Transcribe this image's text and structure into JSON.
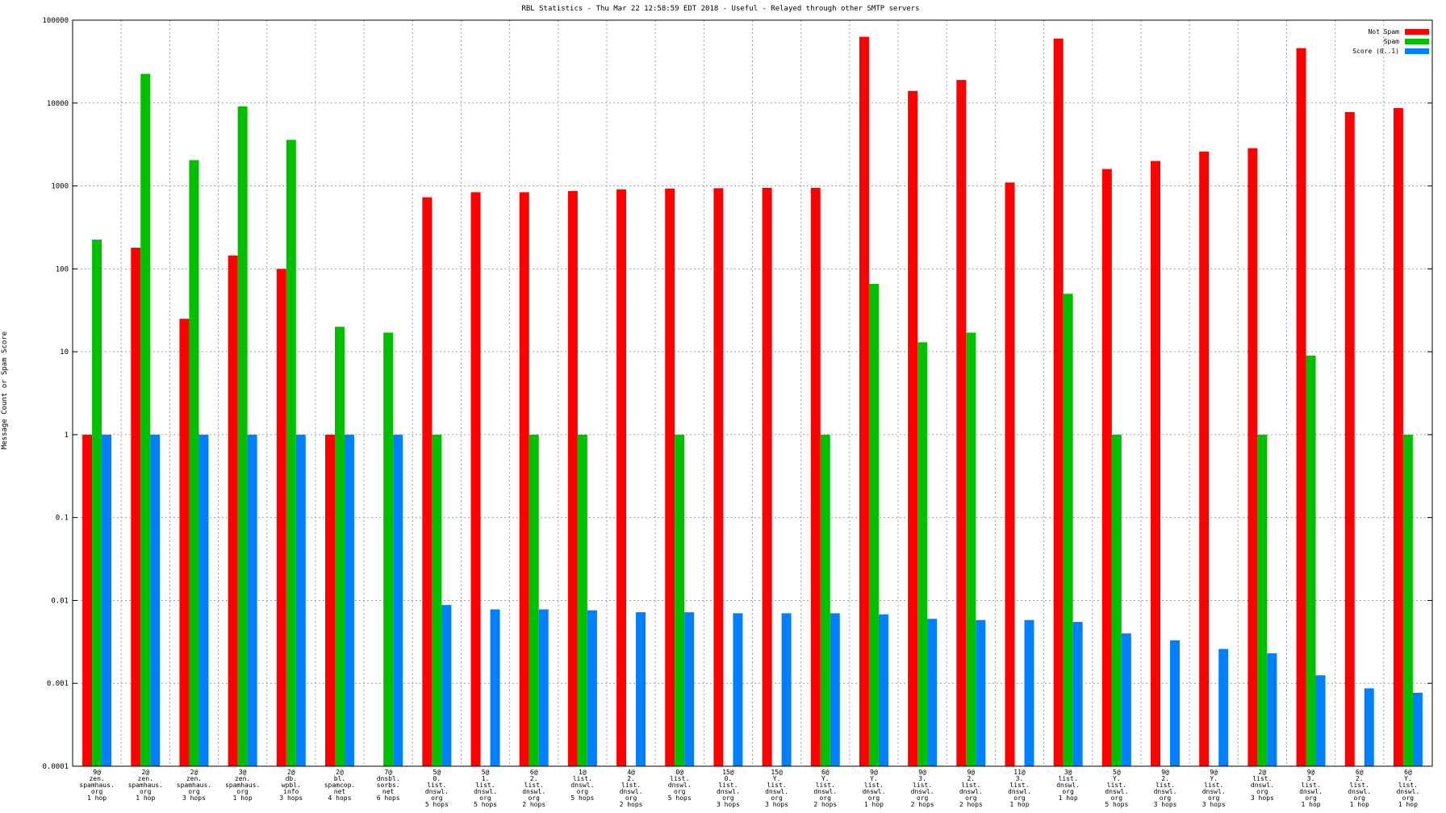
{
  "chart_data": {
    "type": "bar",
    "title": "RBL Statistics - Thu Mar 22 12:58:59 EDT 2018 - Useful - Relayed through other SMTP servers",
    "ylabel": "Message Count or Spam Score",
    "xlabel": "",
    "yscale": "log",
    "ylim": [
      0.0001,
      100000
    ],
    "yticks": [
      "100000",
      "10000",
      "1000",
      "100",
      "10",
      "1",
      "0.1",
      "0.01",
      "0.001",
      "0.0001"
    ],
    "grid": true,
    "legend_position": "top-right",
    "colors": {
      "Not Spam": "#ff0000",
      "Spam": "#00c000",
      "Score (0..1)": "#0080ff"
    },
    "categories": [
      [
        "9@",
        "zen.",
        "spamhaus.",
        "org",
        "1 hop"
      ],
      [
        "2@",
        "zen.",
        "spamhaus.",
        "org",
        "1 hop"
      ],
      [
        "2@",
        "zen.",
        "spamhaus.",
        "org",
        "3 hops"
      ],
      [
        "3@",
        "zen.",
        "spamhaus.",
        "org",
        "1 hop"
      ],
      [
        "2@",
        "db.",
        "wpbl.",
        "info",
        "3 hops"
      ],
      [
        "2@",
        "bl.",
        "spamcop.",
        "net",
        "4 hops"
      ],
      [
        "7@",
        "dnsbl.",
        "sorbs.",
        "net",
        "6 hops"
      ],
      [
        "5@",
        "0.",
        "list.",
        "dnswl.",
        "org",
        "5 hops"
      ],
      [
        "5@",
        "1.",
        "list.",
        "dnswl.",
        "org",
        "5 hops"
      ],
      [
        "6@",
        "2.",
        "list.",
        "dnswl.",
        "org",
        "2 hops"
      ],
      [
        "1@",
        "list.",
        "dnswl.",
        "org",
        "5 hops"
      ],
      [
        "4@",
        "2.",
        "list.",
        "dnswl.",
        "org",
        "2 hops"
      ],
      [
        "0@",
        "list.",
        "dnswl.",
        "org",
        "5 hops"
      ],
      [
        "15@",
        "0.",
        "list.",
        "dnswl.",
        "org",
        "3 hops"
      ],
      [
        "15@",
        "Y.",
        "list.",
        "dnswl.",
        "org",
        "3 hops"
      ],
      [
        "6@",
        "Y.",
        "list.",
        "dnswl.",
        "org",
        "2 hops"
      ],
      [
        "9@",
        "Y.",
        "list.",
        "dnswl.",
        "org",
        "1 hop"
      ],
      [
        "9@",
        "3.",
        "list.",
        "dnswl.",
        "org",
        "2 hops"
      ],
      [
        "9@",
        "2.",
        "list.",
        "dnswl.",
        "org",
        "2 hops"
      ],
      [
        "11@",
        "3.",
        "list.",
        "dnswl.",
        "org",
        "1 hop"
      ],
      [
        "3@",
        "list.",
        "dnswl.",
        "org",
        "1 hop"
      ],
      [
        "5@",
        "Y.",
        "list.",
        "dnswl.",
        "org",
        "5 hops"
      ],
      [
        "9@",
        "2.",
        "list.",
        "dnswl.",
        "org",
        "3 hops"
      ],
      [
        "9@",
        "Y.",
        "list.",
        "dnswl.",
        "org",
        "3 hops"
      ],
      [
        "2@",
        "list.",
        "dnswl.",
        "org",
        "3 hops"
      ],
      [
        "9@",
        "3.",
        "list.",
        "dnswl.",
        "org",
        "1 hop"
      ],
      [
        "6@",
        "2.",
        "list.",
        "dnswl.",
        "org",
        "1 hop"
      ],
      [
        "6@",
        "Y.",
        "list.",
        "dnswl.",
        "org",
        "1 hop"
      ]
    ],
    "series": [
      {
        "name": "Not Spam",
        "values": [
          1,
          180,
          25,
          145,
          100,
          1,
          null,
          730,
          840,
          840,
          870,
          910,
          930,
          940,
          950,
          950,
          63000,
          14000,
          19000,
          1100,
          60000,
          1600,
          2000,
          2600,
          2850,
          46000,
          7800,
          8700
        ]
      },
      {
        "name": "Spam",
        "values": [
          225,
          22500,
          2050,
          9100,
          3600,
          20,
          17,
          1,
          null,
          1,
          1,
          null,
          1,
          null,
          null,
          1,
          66,
          13,
          17,
          null,
          50,
          1,
          null,
          null,
          1,
          9,
          null,
          1
        ]
      },
      {
        "name": "Score (0..1)",
        "values": [
          1,
          1,
          1,
          1,
          1,
          1,
          1,
          0.0088,
          0.0078,
          0.0078,
          0.0076,
          0.0072,
          0.0072,
          0.007,
          0.007,
          0.007,
          0.0068,
          0.006,
          0.0058,
          0.0058,
          0.0055,
          0.004,
          0.0033,
          0.0026,
          0.0023,
          0.00125,
          0.00087,
          0.00077
        ]
      }
    ]
  }
}
